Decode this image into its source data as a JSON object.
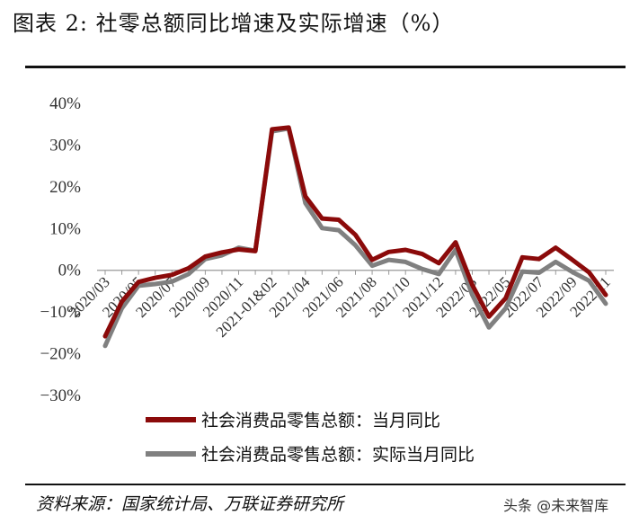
{
  "header": {
    "title": "图表 2: 社零总额同比增速及实际增速（%）"
  },
  "footer": {
    "source": "资料来源：国家统计局、万联证券研究所",
    "watermark": "头条 @未来智库"
  },
  "colors": {
    "nominal": "#8B0A0A",
    "real": "#808080",
    "axis": "#999999"
  },
  "chart_data": {
    "type": "line",
    "title": "",
    "xlabel": "",
    "ylabel": "",
    "ylim": [
      -30,
      40
    ],
    "yticks": [
      -30,
      -20,
      -10,
      0,
      10,
      20,
      30,
      40
    ],
    "ytick_labels": [
      "−30%",
      "−20%",
      "−10%",
      "0%",
      "10%",
      "20%",
      "30%",
      "40%"
    ],
    "grid": false,
    "legend_position": "bottom",
    "x": [
      "2020/03",
      "2020/04",
      "2020/05",
      "2020/06",
      "2020/07",
      "2020/08",
      "2020/09",
      "2020/10",
      "2020/11",
      "2020/12",
      "2021-01&02",
      "2021/03",
      "2021/04",
      "2021/05",
      "2021/06",
      "2021/07",
      "2021/08",
      "2021/09",
      "2021/10",
      "2021/11",
      "2021/12",
      "2022-01&02",
      "2022/03",
      "2022/04",
      "2022/05",
      "2022/06",
      "2022/07",
      "2022/08",
      "2022/09",
      "2022/10",
      "2022/11"
    ],
    "xtick_labels": [
      "2020/03",
      "2020/05",
      "2020/07",
      "2020/09",
      "2020/11",
      "2021-01&02",
      "2021/04",
      "2021/06",
      "2021/08",
      "2021/10",
      "2021/12",
      "2022/03",
      "2022/05",
      "2022/07",
      "2022/09",
      "2022/11"
    ],
    "xtick_indices": [
      0,
      2,
      4,
      6,
      8,
      10,
      12,
      14,
      16,
      18,
      20,
      22,
      24,
      26,
      28,
      30
    ],
    "series": [
      {
        "name": "社会消费品零售总额：当月同比",
        "values": [
          -15.8,
          -7.5,
          -2.8,
          -1.8,
          -1.1,
          0.5,
          3.3,
          4.3,
          5.0,
          4.6,
          33.8,
          34.2,
          17.7,
          12.4,
          12.1,
          8.5,
          2.5,
          4.4,
          4.9,
          3.9,
          1.7,
          6.7,
          -3.5,
          -11.1,
          -6.7,
          3.1,
          2.7,
          5.4,
          2.5,
          -0.5,
          -5.9
        ]
      },
      {
        "name": "社会消费品零售总额：实际当月同比",
        "values": [
          -18.1,
          -9.1,
          -3.7,
          -3.3,
          -2.7,
          -0.9,
          2.7,
          3.6,
          5.4,
          4.7,
          33.3,
          34.0,
          16.1,
          10.1,
          9.6,
          6.0,
          1.1,
          2.5,
          2.0,
          0.3,
          -0.9,
          4.9,
          -5.9,
          -13.7,
          -9.1,
          -0.3,
          -0.6,
          2.0,
          -0.4,
          -2.5,
          -8.0
        ]
      }
    ]
  }
}
